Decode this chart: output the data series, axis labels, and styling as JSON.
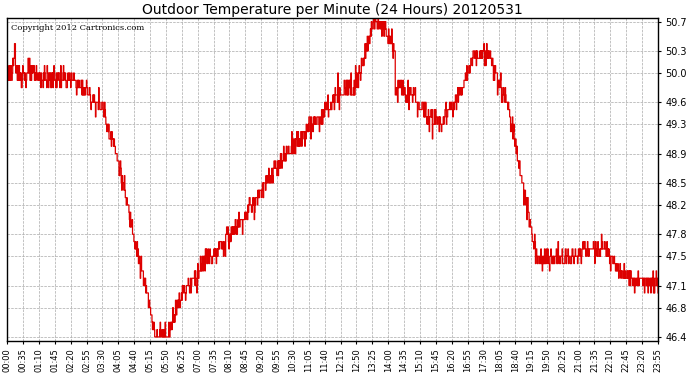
{
  "title": "Outdoor Temperature per Minute (24 Hours) 20120531",
  "copyright": "Copyright 2012 Cartronics.com",
  "line_color": "#dd0000",
  "background_color": "#ffffff",
  "grid_color": "#aaaaaa",
  "yticks": [
    46.4,
    46.8,
    47.1,
    47.5,
    47.8,
    48.2,
    48.5,
    48.9,
    49.3,
    49.6,
    50.0,
    50.3,
    50.7
  ],
  "ymin": 46.4,
  "ymax": 50.7,
  "xtick_labels": [
    "00:00",
    "00:35",
    "01:10",
    "01:45",
    "02:20",
    "02:55",
    "03:30",
    "04:05",
    "04:40",
    "05:15",
    "05:50",
    "06:25",
    "07:00",
    "07:35",
    "08:10",
    "08:45",
    "09:20",
    "09:55",
    "10:30",
    "11:05",
    "11:40",
    "12:15",
    "12:50",
    "13:25",
    "14:00",
    "14:35",
    "15:10",
    "15:45",
    "16:20",
    "16:55",
    "17:30",
    "18:05",
    "18:40",
    "19:15",
    "19:50",
    "20:25",
    "21:00",
    "21:35",
    "22:10",
    "22:45",
    "23:20",
    "23:55"
  ]
}
